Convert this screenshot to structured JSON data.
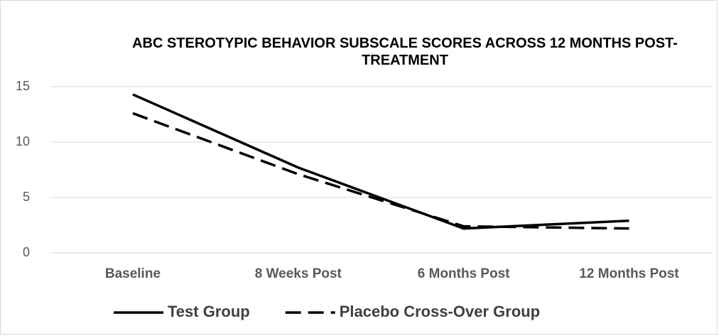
{
  "chart_data": {
    "type": "line",
    "title": "ABC STEROTYPIC BEHAVIOR SUBSCALE SCORES ACROSS 12 MONTHS POST-TREATMENT",
    "categories": [
      "Baseline",
      "8 Weeks Post",
      "6 Months Post",
      "12 Months Post"
    ],
    "series": [
      {
        "name": "Test Group",
        "color": "#000000",
        "dash": "solid",
        "values": [
          14.3,
          7.7,
          2.2,
          2.9
        ]
      },
      {
        "name": "Placebo Cross-Over Group",
        "color": "#000000",
        "dash": "dashed",
        "values": [
          12.6,
          7.1,
          2.4,
          2.2
        ]
      }
    ],
    "ylim": [
      0,
      15
    ],
    "yticks": [
      0,
      5,
      10,
      15
    ],
    "grid": true,
    "legend": "bottom"
  }
}
